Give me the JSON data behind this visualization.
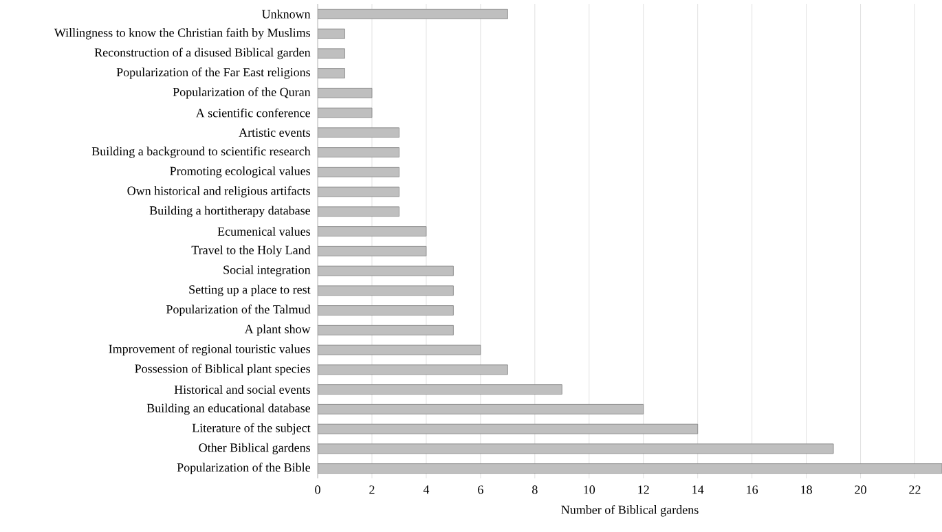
{
  "chart_data": {
    "type": "bar",
    "orientation": "horizontal",
    "xlabel": "Number of Biblical gardens",
    "categories": [
      "Unknown",
      "Willingness to know the Christian faith by Muslims",
      "Reconstruction of a disused Biblical garden",
      "Popularization of the Far East religions",
      "Popularization of the Quran",
      "A scientific conference",
      "Artistic events",
      "Building a background to scientific research",
      "Promoting ecological values",
      "Own historical and religious artifacts",
      "Building a hortitherapy database",
      "Ecumenical values",
      "Travel to the Holy Land",
      "Social integration",
      "Setting up a place to rest",
      "Popularization of the Talmud",
      "A plant show",
      "Improvement of regional touristic values",
      "Possession of Biblical plant species",
      "Historical and social events",
      "Building an educational database",
      "Literature of the subject",
      "Other Biblical gardens",
      "Popularization of the Bible"
    ],
    "values": [
      7,
      1,
      1,
      1,
      2,
      2,
      3,
      3,
      3,
      3,
      3,
      4,
      4,
      5,
      5,
      5,
      5,
      6,
      7,
      9,
      12,
      14,
      19,
      23
    ],
    "color": "#bfbfbf",
    "xlim": [
      0,
      23
    ],
    "xticks": [
      0,
      2,
      4,
      6,
      8,
      10,
      12,
      14,
      16,
      18,
      20,
      22
    ],
    "grid": "x"
  }
}
